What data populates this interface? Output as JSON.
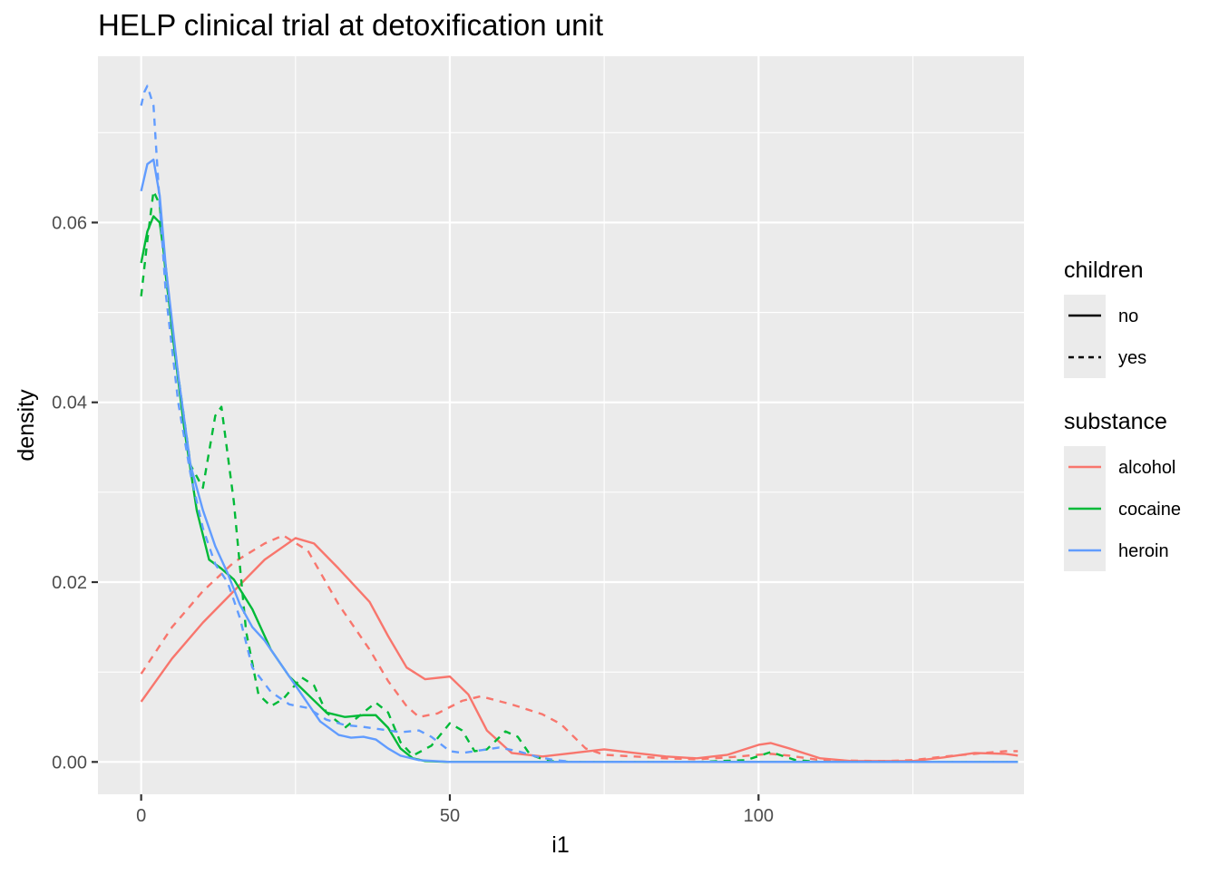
{
  "chart_data": {
    "type": "line",
    "title": "HELP clinical trial at detoxification unit",
    "xlabel": "i1",
    "ylabel": "density",
    "xlim": [
      -7,
      143
    ],
    "ylim": [
      -0.0036,
      0.0785
    ],
    "x_ticks": [
      0,
      50,
      100
    ],
    "x_tick_labels": [
      "0",
      "50",
      "100"
    ],
    "y_ticks": [
      0,
      0.02,
      0.04,
      0.06
    ],
    "y_tick_labels": [
      "0.00",
      "0.02",
      "0.04",
      "0.06"
    ],
    "grid": true,
    "legend_position": "right",
    "legends": [
      {
        "title": "children",
        "kind": "linetype",
        "entries": [
          {
            "label": "no",
            "dash": "solid"
          },
          {
            "label": "yes",
            "dash": "dashed"
          }
        ]
      },
      {
        "title": "substance",
        "kind": "color",
        "entries": [
          {
            "label": "alcohol",
            "color": "#F8766D"
          },
          {
            "label": "cocaine",
            "color": "#00BA38"
          },
          {
            "label": "heroin",
            "color": "#619CFF"
          }
        ]
      }
    ],
    "series": [
      {
        "substance": "alcohol",
        "children": "no",
        "color": "#F8766D",
        "dash": "solid",
        "points": [
          [
            0,
            0.0067
          ],
          [
            5,
            0.0115
          ],
          [
            10,
            0.0155
          ],
          [
            15,
            0.019
          ],
          [
            20,
            0.0225
          ],
          [
            25,
            0.0249
          ],
          [
            28,
            0.0243
          ],
          [
            32,
            0.0215
          ],
          [
            37,
            0.0178
          ],
          [
            40,
            0.014
          ],
          [
            43,
            0.0105
          ],
          [
            46,
            0.0092
          ],
          [
            50,
            0.0095
          ],
          [
            53,
            0.0075
          ],
          [
            56,
            0.0035
          ],
          [
            60,
            0.001
          ],
          [
            65,
            0.0006
          ],
          [
            70,
            0.001
          ],
          [
            75,
            0.0014
          ],
          [
            80,
            0.001
          ],
          [
            85,
            0.0006
          ],
          [
            90,
            0.0004
          ],
          [
            95,
            0.0008
          ],
          [
            100,
            0.0019
          ],
          [
            102,
            0.0021
          ],
          [
            105,
            0.0015
          ],
          [
            110,
            0.0004
          ],
          [
            115,
            0.0001
          ],
          [
            120,
            0.0001
          ],
          [
            125,
            0.0001
          ],
          [
            130,
            0.0005
          ],
          [
            135,
            0.001
          ],
          [
            140,
            0.0009
          ],
          [
            142,
            0.0007
          ]
        ]
      },
      {
        "substance": "alcohol",
        "children": "yes",
        "color": "#F8766D",
        "dash": "dashed",
        "points": [
          [
            0,
            0.0098
          ],
          [
            5,
            0.015
          ],
          [
            10,
            0.019
          ],
          [
            15,
            0.0222
          ],
          [
            20,
            0.0243
          ],
          [
            23,
            0.0252
          ],
          [
            27,
            0.0235
          ],
          [
            32,
            0.0175
          ],
          [
            37,
            0.0125
          ],
          [
            40,
            0.009
          ],
          [
            43,
            0.0062
          ],
          [
            45,
            0.005
          ],
          [
            48,
            0.0054
          ],
          [
            52,
            0.0068
          ],
          [
            55,
            0.0073
          ],
          [
            60,
            0.0064
          ],
          [
            65,
            0.0053
          ],
          [
            68,
            0.0042
          ],
          [
            72,
            0.0015
          ],
          [
            75,
            0.0008
          ],
          [
            80,
            0.0006
          ],
          [
            85,
            0.0004
          ],
          [
            90,
            0.0003
          ],
          [
            95,
            0.0005
          ],
          [
            100,
            0.0008
          ],
          [
            102,
            0.0009
          ],
          [
            105,
            0.0007
          ],
          [
            110,
            0.0002
          ],
          [
            120,
            0.0001
          ],
          [
            125,
            0.0002
          ],
          [
            130,
            0.0006
          ],
          [
            135,
            0.0009
          ],
          [
            140,
            0.0012
          ],
          [
            142,
            0.0012
          ]
        ]
      },
      {
        "substance": "cocaine",
        "children": "no",
        "color": "#00BA38",
        "dash": "solid",
        "points": [
          [
            0,
            0.0555
          ],
          [
            1,
            0.059
          ],
          [
            2,
            0.0607
          ],
          [
            3,
            0.06
          ],
          [
            4,
            0.055
          ],
          [
            5,
            0.048
          ],
          [
            7,
            0.037
          ],
          [
            9,
            0.028
          ],
          [
            11,
            0.0225
          ],
          [
            13,
            0.0215
          ],
          [
            15,
            0.0203
          ],
          [
            18,
            0.017
          ],
          [
            21,
            0.0125
          ],
          [
            24,
            0.0095
          ],
          [
            27,
            0.0075
          ],
          [
            30,
            0.0055
          ],
          [
            33,
            0.005
          ],
          [
            36,
            0.0052
          ],
          [
            38,
            0.0052
          ],
          [
            40,
            0.0038
          ],
          [
            42,
            0.0015
          ],
          [
            44,
            0.0004
          ],
          [
            46,
            0.0001
          ],
          [
            50,
            0.0
          ],
          [
            60,
            0.0
          ],
          [
            80,
            0.0
          ],
          [
            100,
            0.0
          ],
          [
            120,
            0.0
          ],
          [
            142,
            0.0
          ]
        ]
      },
      {
        "substance": "cocaine",
        "children": "yes",
        "color": "#00BA38",
        "dash": "dashed",
        "points": [
          [
            0,
            0.0518
          ],
          [
            1,
            0.058
          ],
          [
            2,
            0.0635
          ],
          [
            3,
            0.062
          ],
          [
            4,
            0.054
          ],
          [
            6,
            0.043
          ],
          [
            8,
            0.033
          ],
          [
            10,
            0.0305
          ],
          [
            12,
            0.0385
          ],
          [
            13,
            0.0395
          ],
          [
            15,
            0.029
          ],
          [
            17,
            0.0145
          ],
          [
            19,
            0.0075
          ],
          [
            21,
            0.0062
          ],
          [
            23,
            0.007
          ],
          [
            26,
            0.0094
          ],
          [
            28,
            0.0085
          ],
          [
            30,
            0.0055
          ],
          [
            33,
            0.0038
          ],
          [
            36,
            0.0055
          ],
          [
            38,
            0.0066
          ],
          [
            40,
            0.0055
          ],
          [
            42,
            0.0022
          ],
          [
            44,
            0.0007
          ],
          [
            47,
            0.0018
          ],
          [
            50,
            0.0043
          ],
          [
            52,
            0.0035
          ],
          [
            54,
            0.0012
          ],
          [
            56,
            0.0014
          ],
          [
            59,
            0.0034
          ],
          [
            61,
            0.0028
          ],
          [
            63,
            0.0008
          ],
          [
            66,
            0.0001
          ],
          [
            70,
            0.0
          ],
          [
            90,
            0.0
          ],
          [
            98,
            0.0002
          ],
          [
            102,
            0.0011
          ],
          [
            106,
            0.0002
          ],
          [
            110,
            0.0
          ],
          [
            130,
            0.0
          ],
          [
            142,
            0.0
          ]
        ]
      },
      {
        "substance": "heroin",
        "children": "no",
        "color": "#619CFF",
        "dash": "solid",
        "points": [
          [
            0,
            0.0635
          ],
          [
            1,
            0.0665
          ],
          [
            2,
            0.067
          ],
          [
            3,
            0.063
          ],
          [
            4,
            0.055
          ],
          [
            6,
            0.043
          ],
          [
            8,
            0.033
          ],
          [
            10,
            0.028
          ],
          [
            12,
            0.024
          ],
          [
            14,
            0.021
          ],
          [
            16,
            0.0175
          ],
          [
            18,
            0.015
          ],
          [
            20,
            0.0135
          ],
          [
            23,
            0.0105
          ],
          [
            26,
            0.0075
          ],
          [
            29,
            0.0045
          ],
          [
            32,
            0.003
          ],
          [
            34,
            0.0027
          ],
          [
            36,
            0.0028
          ],
          [
            38,
            0.0025
          ],
          [
            40,
            0.0015
          ],
          [
            42,
            0.0007
          ],
          [
            45,
            0.0002
          ],
          [
            50,
            0.0
          ],
          [
            60,
            0.0
          ],
          [
            80,
            0.0
          ],
          [
            100,
            0.0
          ],
          [
            120,
            0.0
          ],
          [
            142,
            0.0
          ]
        ]
      },
      {
        "substance": "heroin",
        "children": "yes",
        "color": "#619CFF",
        "dash": "dashed",
        "points": [
          [
            0,
            0.073
          ],
          [
            0.5,
            0.0745
          ],
          [
            1,
            0.0752
          ],
          [
            2,
            0.073
          ],
          [
            3,
            0.062
          ],
          [
            4,
            0.052
          ],
          [
            6,
            0.04
          ],
          [
            8,
            0.032
          ],
          [
            10,
            0.026
          ],
          [
            12,
            0.022
          ],
          [
            14,
            0.02
          ],
          [
            16,
            0.016
          ],
          [
            18,
            0.0105
          ],
          [
            21,
            0.0078
          ],
          [
            24,
            0.0064
          ],
          [
            27,
            0.006
          ],
          [
            30,
            0.0047
          ],
          [
            33,
            0.0041
          ],
          [
            36,
            0.0039
          ],
          [
            39,
            0.0036
          ],
          [
            42,
            0.0033
          ],
          [
            45,
            0.0035
          ],
          [
            47,
            0.0028
          ],
          [
            50,
            0.0012
          ],
          [
            52,
            0.001
          ],
          [
            55,
            0.0013
          ],
          [
            58,
            0.0016
          ],
          [
            61,
            0.0012
          ],
          [
            64,
            0.0006
          ],
          [
            67,
            0.0002
          ],
          [
            70,
            0.0
          ],
          [
            90,
            0.0
          ],
          [
            110,
            0.0
          ],
          [
            142,
            0.0
          ]
        ]
      }
    ]
  }
}
